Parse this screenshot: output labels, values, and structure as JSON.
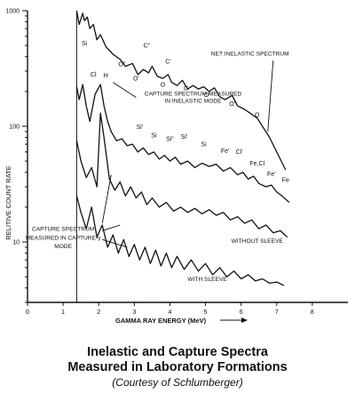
{
  "chart_data": {
    "type": "line",
    "title": "Inelastic and Capture Spectra",
    "subtitle": "Measured in Laboratory Formations",
    "source": "(Courtesy of Schlumberger)",
    "xlabel": "GAMMA RAY ENERGY (MeV)",
    "ylabel": "RELITIVE COUNT RATE",
    "xlim": [
      0,
      9
    ],
    "ylim": [
      3,
      1000
    ],
    "yscale": "log",
    "x_ticks": [
      "0",
      "1",
      "2",
      "3",
      "4",
      "5",
      "6",
      "7",
      "8"
    ],
    "y_ticks": [
      "10",
      "100",
      "1000"
    ],
    "grid": false,
    "series": [
      {
        "name": "NET INELASTIC SPECTRUM",
        "x": [
          1.38,
          1.45,
          1.55,
          1.6,
          1.68,
          1.75,
          1.85,
          1.95,
          2.05,
          2.2,
          2.4,
          2.6,
          2.75,
          2.95,
          3.1,
          3.25,
          3.4,
          3.5,
          3.65,
          3.8,
          3.95,
          4.05,
          4.2,
          4.35,
          4.5,
          4.65,
          4.8,
          4.95,
          5.1,
          5.25,
          5.4,
          5.55,
          5.75,
          5.9,
          6.1,
          6.25,
          6.45,
          6.6,
          6.8,
          7.0,
          7.25
        ],
        "y": [
          1000,
          760,
          950,
          820,
          880,
          700,
          760,
          560,
          620,
          490,
          420,
          380,
          330,
          350,
          280,
          310,
          290,
          330,
          270,
          260,
          280,
          240,
          225,
          250,
          210,
          225,
          210,
          220,
          200,
          215,
          180,
          170,
          185,
          150,
          140,
          130,
          118,
          100,
          80,
          60,
          42
        ]
      },
      {
        "name": "CAPTURE SPECTRUM MEASURED IN INELASTIC MODE",
        "x": [
          1.38,
          1.45,
          1.55,
          1.65,
          1.75,
          1.9,
          2.05,
          2.15,
          2.25,
          2.35,
          2.5,
          2.65,
          2.8,
          2.95,
          3.1,
          3.25,
          3.4,
          3.55,
          3.7,
          3.85,
          4.0,
          4.15,
          4.3,
          4.5,
          4.7,
          4.9,
          5.1,
          5.3,
          5.5,
          5.7,
          5.9,
          6.05,
          6.2,
          6.35,
          6.5,
          6.7,
          6.85,
          7.0,
          7.15,
          7.35
        ],
        "y": [
          220,
          170,
          230,
          150,
          110,
          190,
          230,
          150,
          110,
          90,
          75,
          78,
          68,
          70,
          60,
          65,
          57,
          60,
          52,
          56,
          50,
          54,
          47,
          50,
          44,
          48,
          45,
          47,
          41,
          44,
          38,
          40,
          35,
          37,
          32,
          30,
          31,
          27,
          25,
          22
        ]
      },
      {
        "name": "WITHOUT SLEEVE",
        "x": [
          1.38,
          1.5,
          1.65,
          1.8,
          1.95,
          2.05,
          2.15,
          2.3,
          2.45,
          2.6,
          2.75,
          2.9,
          3.05,
          3.2,
          3.35,
          3.5,
          3.7,
          3.9,
          4.1,
          4.3,
          4.5,
          4.7,
          4.9,
          5.1,
          5.3,
          5.5,
          5.7,
          5.9,
          6.1,
          6.3,
          6.5,
          6.7,
          6.9,
          7.1,
          7.3
        ],
        "y": [
          75,
          50,
          36,
          44,
          30,
          130,
          80,
          35,
          28,
          33,
          25,
          30,
          24,
          27,
          21,
          24,
          20,
          22,
          18.5,
          20,
          18,
          19.5,
          17.5,
          19,
          17,
          18,
          15.5,
          16.5,
          14.5,
          15.5,
          13,
          14,
          12,
          12.5,
          11
        ]
      },
      {
        "name": "WITH SLEEVE",
        "x": [
          1.38,
          1.5,
          1.65,
          1.8,
          1.95,
          2.1,
          2.25,
          2.4,
          2.55,
          2.7,
          2.85,
          3.0,
          3.15,
          3.3,
          3.45,
          3.6,
          3.75,
          3.9,
          4.05,
          4.2,
          4.4,
          4.6,
          4.8,
          5.0,
          5.2,
          5.4,
          5.6,
          5.8,
          6.0,
          6.2,
          6.4,
          6.6,
          6.8,
          7.0,
          7.2
        ],
        "y": [
          25,
          18,
          13,
          20,
          11,
          14,
          9,
          11.5,
          8,
          10.5,
          7.5,
          9.5,
          7,
          9,
          6.5,
          8.5,
          6.2,
          8,
          6,
          7.5,
          5.8,
          7,
          5.6,
          6.5,
          5.2,
          6,
          5,
          5.6,
          4.8,
          5.2,
          4.6,
          4.8,
          4.4,
          4.5,
          4.2
        ]
      }
    ],
    "annotations": [
      {
        "text": "Si",
        "x": 1.6,
        "y": 500
      },
      {
        "text": "O\"",
        "x": 2.65,
        "y": 330
      },
      {
        "text": "C\"",
        "x": 3.35,
        "y": 480
      },
      {
        "text": "O'",
        "x": 3.05,
        "y": 250
      },
      {
        "text": "C'",
        "x": 3.95,
        "y": 350
      },
      {
        "text": "O",
        "x": 3.8,
        "y": 220
      },
      {
        "text": "C",
        "x": 4.45,
        "y": 205
      },
      {
        "text": "O\"",
        "x": 5.05,
        "y": 180
      },
      {
        "text": "O'",
        "x": 5.75,
        "y": 150
      },
      {
        "text": "O",
        "x": 6.45,
        "y": 120
      },
      {
        "text": "Cl",
        "x": 1.85,
        "y": 270
      },
      {
        "text": "H",
        "x": 2.2,
        "y": 265
      },
      {
        "text": "Si'",
        "x": 3.15,
        "y": 95
      },
      {
        "text": "Si",
        "x": 3.55,
        "y": 80
      },
      {
        "text": "Si\"",
        "x": 4.0,
        "y": 75
      },
      {
        "text": "Si'",
        "x": 4.4,
        "y": 78
      },
      {
        "text": "Si",
        "x": 4.95,
        "y": 67
      },
      {
        "text": "Fe'",
        "x": 5.55,
        "y": 59
      },
      {
        "text": "Cl'",
        "x": 5.95,
        "y": 58
      },
      {
        "text": "Fe,Cl",
        "x": 6.45,
        "y": 46
      },
      {
        "text": "Fe'",
        "x": 6.85,
        "y": 37
      },
      {
        "text": "Fe",
        "x": 7.25,
        "y": 33
      }
    ],
    "series_labels": [
      {
        "text": "NET INELASTIC SPECTRUM",
        "x": 6.25,
        "y": 410
      },
      {
        "text": "CAPTURE SPECTRUM MEASURED",
        "x": 4.65,
        "y": 185
      },
      {
        "text": "IN INELASTIC MODE",
        "x": 4.65,
        "y": 160
      },
      {
        "text": "CAPTURE SPECTRUM",
        "x": 1.0,
        "y": 12.5
      },
      {
        "text": "MEASURED IN CAPTURE-γ",
        "x": 1.0,
        "y": 10.5
      },
      {
        "text": "MODE",
        "x": 1.0,
        "y": 8.8
      },
      {
        "text": "WITHOUT SLEEVE",
        "x": 6.45,
        "y": 9.8
      },
      {
        "text": "WITH SLEEVE",
        "x": 5.05,
        "y": 4.6
      }
    ]
  }
}
